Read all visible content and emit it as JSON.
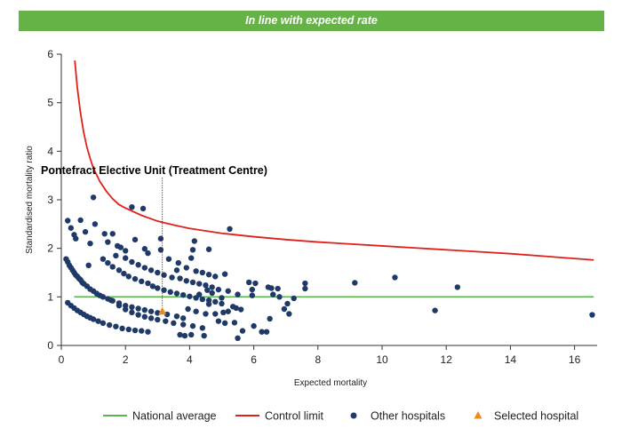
{
  "banner": {
    "text": "In line with expected rate",
    "color": "#65b346"
  },
  "chart_data": {
    "type": "scatter",
    "xlabel": "Expected mortality",
    "ylabel": "Standardised mortality ratio",
    "xlim": [
      0,
      16.8
    ],
    "ylim": [
      0,
      6
    ],
    "x_ticks": [
      0,
      2,
      4,
      6,
      8,
      10,
      12,
      14,
      16
    ],
    "y_ticks": [
      0,
      1,
      2,
      3,
      4,
      5,
      6
    ],
    "grid": false,
    "legend_position": "bottom-right",
    "annotation": {
      "text": "Pontefract Elective Unit (Treatment Centre)",
      "x": 3.15,
      "y": 0.7
    },
    "national_average": {
      "name": "National average",
      "value": 1.0,
      "x_range": [
        0.4,
        16.6
      ],
      "color": "#5bb450"
    },
    "control_limit": {
      "name": "Control limit",
      "color": "#e0201b",
      "points": [
        [
          0.42,
          5.87
        ],
        [
          0.5,
          5.3
        ],
        [
          0.6,
          4.78
        ],
        [
          0.7,
          4.38
        ],
        [
          0.8,
          4.08
        ],
        [
          0.9,
          3.85
        ],
        [
          1.0,
          3.65
        ],
        [
          1.2,
          3.38
        ],
        [
          1.4,
          3.18
        ],
        [
          1.6,
          3.02
        ],
        [
          1.8,
          2.9
        ],
        [
          2.0,
          2.83
        ],
        [
          2.5,
          2.68
        ],
        [
          3.0,
          2.56
        ],
        [
          3.5,
          2.48
        ],
        [
          4.0,
          2.41
        ],
        [
          4.5,
          2.36
        ],
        [
          5.0,
          2.31
        ],
        [
          6.0,
          2.24
        ],
        [
          7.0,
          2.18
        ],
        [
          8.0,
          2.13
        ],
        [
          9.0,
          2.09
        ],
        [
          10.0,
          2.05
        ],
        [
          11.0,
          2.01
        ],
        [
          12.0,
          1.97
        ],
        [
          13.0,
          1.93
        ],
        [
          14.0,
          1.89
        ],
        [
          15.0,
          1.84
        ],
        [
          16.0,
          1.79
        ],
        [
          16.6,
          1.76
        ]
      ]
    },
    "other_hospitals": {
      "name": "Other hospitals",
      "color": "#1f3a68",
      "points": [
        [
          0.2,
          2.57
        ],
        [
          0.3,
          2.42
        ],
        [
          0.4,
          2.28
        ],
        [
          0.45,
          2.2
        ],
        [
          0.6,
          2.58
        ],
        [
          0.75,
          2.34
        ],
        [
          1.0,
          3.05
        ],
        [
          1.05,
          2.5
        ],
        [
          0.9,
          2.1
        ],
        [
          1.35,
          2.3
        ],
        [
          1.45,
          2.13
        ],
        [
          1.6,
          2.3
        ],
        [
          1.75,
          2.05
        ],
        [
          1.85,
          2.02
        ],
        [
          2.0,
          1.95
        ],
        [
          2.2,
          2.85
        ],
        [
          2.3,
          2.18
        ],
        [
          2.55,
          2.82
        ],
        [
          2.6,
          1.99
        ],
        [
          2.7,
          1.9
        ],
        [
          3.1,
          2.2
        ],
        [
          3.1,
          1.97
        ],
        [
          3.35,
          1.78
        ],
        [
          3.65,
          1.7
        ],
        [
          4.15,
          2.15
        ],
        [
          4.1,
          1.97
        ],
        [
          4.6,
          1.98
        ],
        [
          5.25,
          2.4
        ],
        [
          0.15,
          1.78
        ],
        [
          0.2,
          1.72
        ],
        [
          0.25,
          1.65
        ],
        [
          0.3,
          1.6
        ],
        [
          0.35,
          1.55
        ],
        [
          0.4,
          1.5
        ],
        [
          0.45,
          1.45
        ],
        [
          0.5,
          1.42
        ],
        [
          0.55,
          1.38
        ],
        [
          0.6,
          1.35
        ],
        [
          0.65,
          1.3
        ],
        [
          0.7,
          1.27
        ],
        [
          0.8,
          1.22
        ],
        [
          0.9,
          1.16
        ],
        [
          1.0,
          1.12
        ],
        [
          1.1,
          1.07
        ],
        [
          1.2,
          1.03
        ],
        [
          1.3,
          1.0
        ],
        [
          1.45,
          0.96
        ],
        [
          1.6,
          0.92
        ],
        [
          1.8,
          0.87
        ],
        [
          2.0,
          0.82
        ],
        [
          2.2,
          0.79
        ],
        [
          2.4,
          0.76
        ],
        [
          2.6,
          0.73
        ],
        [
          2.8,
          0.7
        ],
        [
          3.0,
          0.67
        ],
        [
          3.3,
          0.64
        ],
        [
          3.6,
          0.6
        ],
        [
          3.8,
          0.56
        ],
        [
          0.85,
          1.65
        ],
        [
          1.3,
          1.78
        ],
        [
          1.45,
          1.7
        ],
        [
          1.6,
          1.62
        ],
        [
          1.8,
          1.55
        ],
        [
          1.95,
          1.48
        ],
        [
          2.1,
          1.42
        ],
        [
          2.3,
          1.37
        ],
        [
          2.5,
          1.32
        ],
        [
          2.7,
          1.28
        ],
        [
          2.85,
          1.22
        ],
        [
          3.0,
          1.18
        ],
        [
          3.2,
          1.14
        ],
        [
          3.4,
          1.1
        ],
        [
          3.6,
          1.07
        ],
        [
          3.8,
          1.04
        ],
        [
          4.0,
          1.01
        ],
        [
          4.2,
          0.98
        ],
        [
          4.4,
          0.95
        ],
        [
          4.6,
          0.93
        ],
        [
          4.8,
          0.9
        ],
        [
          5.0,
          0.86
        ],
        [
          1.7,
          1.85
        ],
        [
          2.0,
          1.8
        ],
        [
          2.2,
          1.72
        ],
        [
          2.4,
          1.66
        ],
        [
          2.6,
          1.6
        ],
        [
          2.8,
          1.55
        ],
        [
          3.0,
          1.5
        ],
        [
          3.2,
          1.45
        ],
        [
          3.45,
          1.4
        ],
        [
          3.7,
          1.38
        ],
        [
          3.9,
          1.33
        ],
        [
          4.1,
          1.3
        ],
        [
          4.3,
          1.27
        ],
        [
          4.5,
          1.24
        ],
        [
          4.7,
          1.2
        ],
        [
          4.9,
          1.15
        ],
        [
          5.2,
          1.12
        ],
        [
          5.5,
          1.05
        ],
        [
          3.6,
          1.55
        ],
        [
          3.9,
          1.6
        ],
        [
          4.2,
          1.53
        ],
        [
          4.4,
          1.5
        ],
        [
          4.6,
          1.46
        ],
        [
          4.8,
          1.42
        ],
        [
          4.55,
          1.14
        ],
        [
          4.7,
          1.08
        ],
        [
          5.0,
          0.98
        ],
        [
          5.1,
          1.47
        ],
        [
          4.05,
          1.8
        ],
        [
          4.8,
          0.65
        ],
        [
          5.05,
          0.68
        ],
        [
          5.35,
          0.8
        ],
        [
          5.45,
          0.77
        ],
        [
          5.6,
          0.74
        ],
        [
          5.1,
          0.46
        ],
        [
          5.4,
          0.47
        ],
        [
          5.5,
          0.15
        ],
        [
          5.65,
          0.3
        ],
        [
          5.85,
          1.3
        ],
        [
          5.95,
          1.15
        ],
        [
          6.05,
          1.28
        ],
        [
          5.95,
          1.03
        ],
        [
          6.0,
          0.4
        ],
        [
          6.25,
          0.28
        ],
        [
          6.4,
          0.28
        ],
        [
          6.45,
          1.2
        ],
        [
          6.55,
          1.18
        ],
        [
          6.6,
          1.05
        ],
        [
          6.75,
          1.17
        ],
        [
          6.8,
          1.0
        ],
        [
          6.5,
          0.55
        ],
        [
          6.95,
          0.75
        ],
        [
          7.05,
          0.86
        ],
        [
          7.1,
          0.65
        ],
        [
          7.25,
          0.97
        ],
        [
          7.6,
          1.28
        ],
        [
          7.6,
          1.17
        ],
        [
          9.15,
          1.29
        ],
        [
          10.4,
          1.4
        ],
        [
          11.65,
          0.72
        ],
        [
          12.35,
          1.2
        ],
        [
          16.55,
          0.63
        ],
        [
          0.2,
          0.88
        ],
        [
          0.3,
          0.82
        ],
        [
          0.4,
          0.77
        ],
        [
          0.5,
          0.72
        ],
        [
          0.6,
          0.68
        ],
        [
          0.7,
          0.64
        ],
        [
          0.8,
          0.6
        ],
        [
          0.9,
          0.57
        ],
        [
          1.0,
          0.54
        ],
        [
          1.15,
          0.5
        ],
        [
          1.3,
          0.46
        ],
        [
          1.5,
          0.42
        ],
        [
          1.7,
          0.39
        ],
        [
          1.9,
          0.35
        ],
        [
          2.1,
          0.33
        ],
        [
          2.3,
          0.31
        ],
        [
          2.5,
          0.3
        ],
        [
          2.7,
          0.28
        ],
        [
          1.55,
          0.93
        ],
        [
          1.8,
          0.82
        ],
        [
          2.0,
          0.74
        ],
        [
          2.2,
          0.68
        ],
        [
          2.4,
          0.63
        ],
        [
          2.6,
          0.59
        ],
        [
          2.8,
          0.56
        ],
        [
          3.0,
          0.53
        ],
        [
          3.25,
          0.5
        ],
        [
          3.5,
          0.46
        ],
        [
          3.8,
          0.43
        ],
        [
          4.1,
          0.4
        ],
        [
          4.4,
          0.36
        ],
        [
          3.95,
          0.75
        ],
        [
          4.2,
          0.7
        ],
        [
          4.5,
          0.65
        ],
        [
          3.7,
          0.22
        ],
        [
          3.85,
          0.2
        ],
        [
          4.05,
          0.22
        ],
        [
          4.45,
          0.2
        ],
        [
          4.3,
          1.05
        ],
        [
          4.6,
          0.85
        ],
        [
          4.9,
          0.5
        ],
        [
          5.2,
          0.7
        ]
      ]
    },
    "selected_hospital": {
      "name": "Selected hospital",
      "x": 3.15,
      "y": 0.7,
      "color": "#ee8a1a"
    }
  }
}
